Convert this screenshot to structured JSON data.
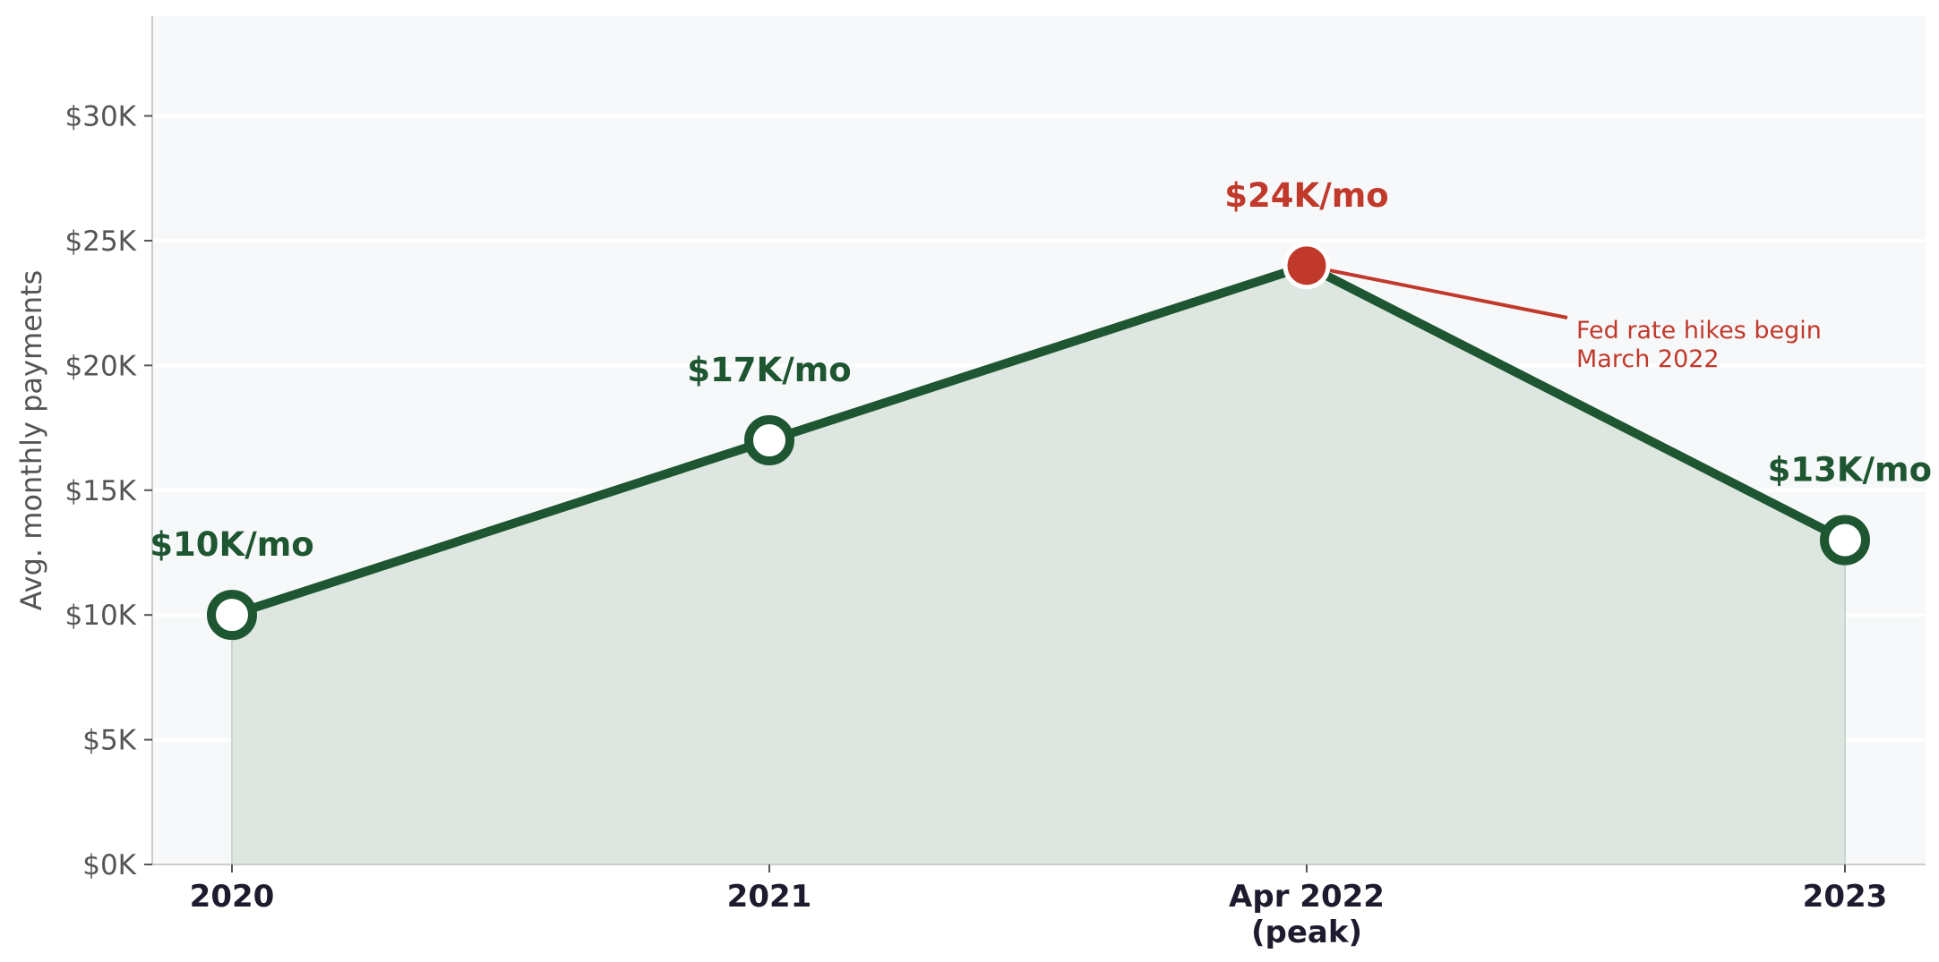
{
  "chart_data": {
    "type": "area",
    "title": "",
    "xlabel": "",
    "ylabel": "Avg. monthly payments",
    "categories": [
      [
        "2020"
      ],
      [
        "2021"
      ],
      [
        "Apr 2022",
        "(peak)"
      ],
      [
        "2023"
      ]
    ],
    "values": [
      10000,
      17000,
      24000,
      13000
    ],
    "data_labels": [
      "$10K/mo",
      "$17K/mo",
      "$24K/mo",
      "$13K/mo"
    ],
    "highlight_index": 2,
    "ylim": [
      0,
      34000
    ],
    "yticks": [
      0,
      5000,
      10000,
      15000,
      20000,
      25000,
      30000
    ],
    "ytick_labels": [
      "$0K",
      "$5K",
      "$10K",
      "$15K",
      "$20K",
      "$25K",
      "$30K"
    ],
    "grid": "horizontal",
    "annotation": {
      "point_index": 2,
      "lines": [
        "Fed rate hikes begin",
        "March 2022"
      ]
    },
    "colors": {
      "line": "#1e5631",
      "area": "#dde6e0",
      "highlight": "#c0392b",
      "plot_background": "#f7f8fa",
      "grid": "#ffffff",
      "axis": "#cccccc"
    }
  }
}
